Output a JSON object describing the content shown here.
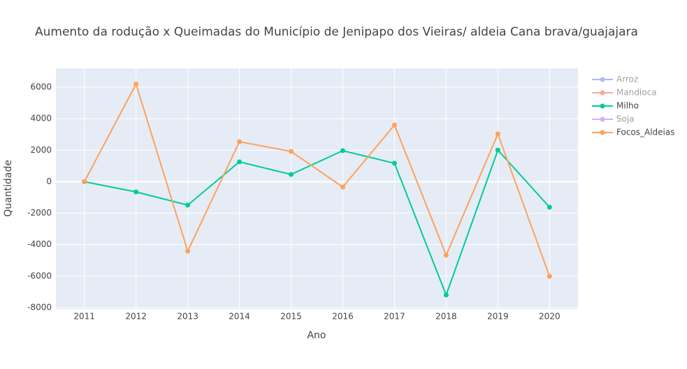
{
  "chart_data": {
    "type": "line",
    "title": "Aumento da rodução x Queimadas do Município de Jenipapo dos Vieiras/ aldeia Cana brava/guajajara",
    "xlabel": "Ano",
    "ylabel": "Quantidade",
    "x": [
      2011,
      2012,
      2013,
      2014,
      2015,
      2016,
      2017,
      2018,
      2019,
      2020
    ],
    "series": [
      {
        "name": "Arroz",
        "color": "#636efa",
        "visible": "legendonly"
      },
      {
        "name": "Mandioca",
        "color": "#EF553B",
        "visible": "legendonly"
      },
      {
        "name": "Milho",
        "color": "#00cc96",
        "values": [
          0,
          -650,
          -1490,
          1260,
          460,
          1970,
          1170,
          -7200,
          2010,
          -1620
        ]
      },
      {
        "name": "Soja",
        "color": "#ab63fa",
        "visible": "legendonly"
      },
      {
        "name": "Focos_Aldeias",
        "color": "#FFA15A",
        "values": [
          0,
          6200,
          -4410,
          2540,
          1920,
          -340,
          3600,
          -4670,
          3030,
          -6010
        ]
      }
    ],
    "xlim": [
      2010.45,
      2020.55
    ],
    "xticks": [
      2011,
      2012,
      2013,
      2014,
      2015,
      2016,
      2017,
      2018,
      2019,
      2020
    ],
    "ylim": [
      -8090,
      7200
    ],
    "yticks": [
      -8000,
      -6000,
      -4000,
      -2000,
      0,
      2000,
      4000,
      6000
    ],
    "grid": true,
    "legend": "right"
  }
}
